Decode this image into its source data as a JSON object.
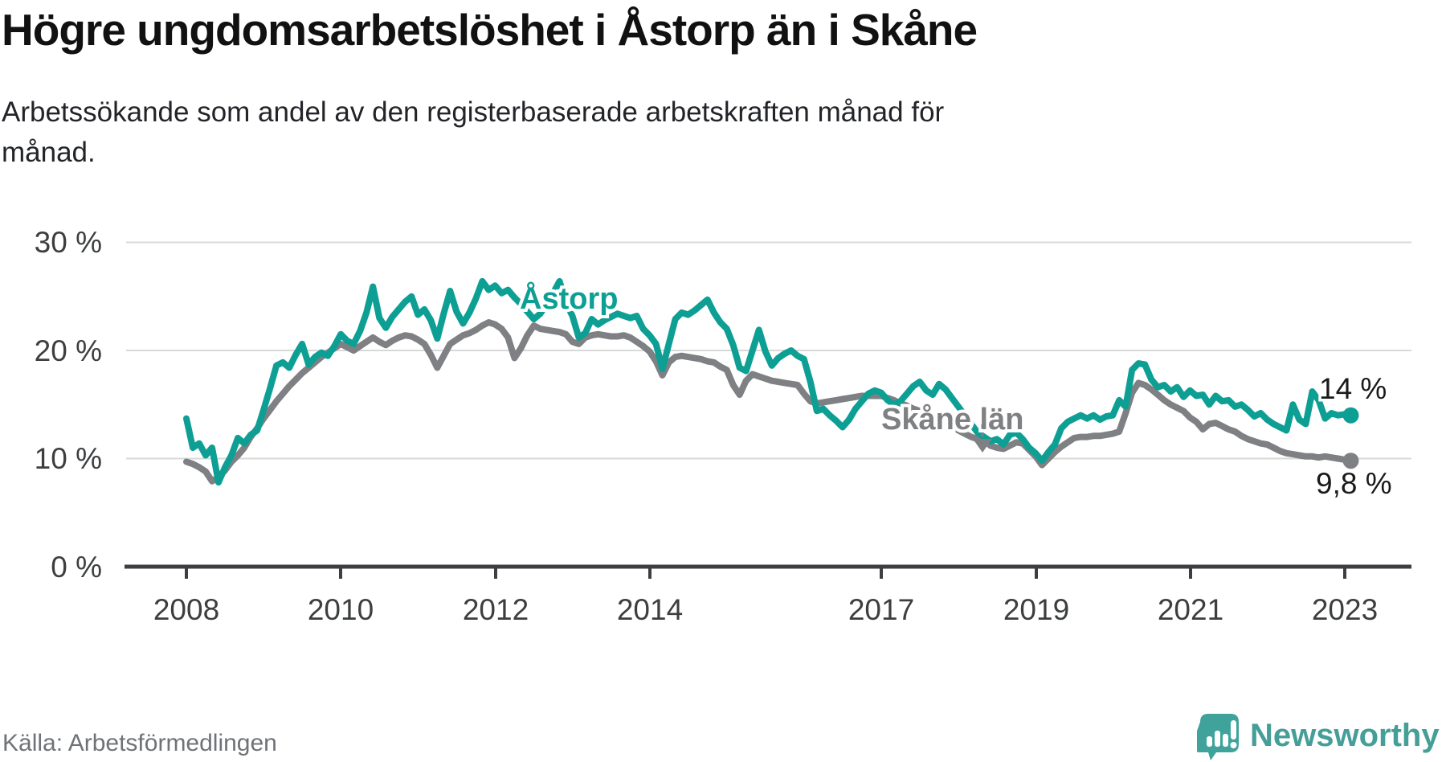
{
  "footer": {
    "source": "Källa: Arbetsförmedlingen",
    "brand": "Newsworthy"
  },
  "chart_data": {
    "type": "line",
    "title": "Högre ungdomsarbetslöshet i Åstorp än i Skåne",
    "subtitle": "Arbetssökande som andel av den registerbaserade arbetskraften månad för månad.",
    "subtitle_lines": [
      "Arbetssökande som andel av den registerbaserade arbetskraften månad för",
      "månad."
    ],
    "xlabel": "",
    "ylabel": "",
    "ylim": [
      0,
      30
    ],
    "grid": "horizontal",
    "legend": "inline-labels",
    "x_start": "2008-01",
    "x_end": "2023-02",
    "x_interval": "monthly",
    "x_tick_labels": [
      "2008",
      "2010",
      "2012",
      "2014",
      "2017",
      "2019",
      "2021",
      "2023"
    ],
    "x_tick_years": [
      2008,
      2010,
      2012,
      2014,
      2017,
      2019,
      2021,
      2023
    ],
    "y_ticks": [
      {
        "label": "30 %",
        "value": 30
      },
      {
        "label": "20 %",
        "value": 20
      },
      {
        "label": "10 %",
        "value": 10
      },
      {
        "label": "0 %",
        "value": 0
      }
    ],
    "series": [
      {
        "name": "Åstorp",
        "color": "#0d9f94",
        "end_label": "14 %",
        "end_value": 14,
        "values": [
          13.7,
          11.0,
          11.4,
          10.3,
          11.0,
          7.8,
          9.2,
          10.3,
          11.9,
          11.4,
          12.2,
          12.6,
          14.5,
          16.5,
          18.6,
          18.9,
          18.4,
          19.6,
          20.6,
          18.7,
          19.4,
          19.8,
          19.5,
          20.4,
          21.5,
          20.9,
          20.6,
          21.8,
          23.5,
          25.9,
          23.0,
          22.1,
          23.1,
          23.8,
          24.5,
          25.0,
          23.3,
          23.8,
          22.8,
          21.1,
          23.4,
          25.5,
          23.6,
          22.5,
          23.5,
          24.8,
          26.4,
          25.6,
          26.0,
          25.3,
          25.6,
          24.9,
          24.3,
          23.6,
          22.9,
          23.4,
          24.3,
          25.3,
          26.4,
          24.4,
          23.2,
          21.2,
          21.6,
          22.9,
          22.4,
          22.8,
          23.1,
          23.4,
          23.2,
          23.0,
          23.2,
          22.0,
          21.4,
          20.6,
          18.3,
          20.6,
          22.9,
          23.5,
          23.3,
          23.7,
          24.2,
          24.7,
          23.5,
          22.6,
          22.0,
          20.5,
          18.4,
          18.1,
          20.0,
          21.9,
          19.9,
          18.6,
          19.3,
          19.7,
          20.0,
          19.5,
          19.2,
          17.1,
          14.4,
          14.6,
          14.0,
          13.5,
          12.9,
          13.6,
          14.6,
          15.3,
          16.0,
          16.3,
          16.1,
          15.4,
          15.0,
          15.3,
          16.0,
          16.7,
          17.1,
          16.3,
          15.9,
          16.9,
          16.4,
          15.6,
          14.8,
          14.0,
          13.2,
          12.4,
          12.0,
          11.6,
          11.8,
          11.3,
          12.2,
          12.4,
          11.8,
          11.0,
          10.5,
          9.8,
          10.6,
          11.3,
          12.8,
          13.4,
          13.7,
          14.0,
          13.7,
          14.0,
          13.6,
          13.9,
          14.0,
          15.4,
          14.8,
          18.2,
          18.8,
          18.7,
          17.3,
          16.6,
          16.8,
          16.2,
          16.6,
          15.7,
          16.3,
          15.8,
          15.9,
          15.0,
          15.8,
          15.3,
          15.4,
          14.8,
          15.0,
          14.5,
          13.9,
          14.2,
          13.6,
          13.2,
          12.9,
          12.6,
          15.0,
          13.6,
          13.2,
          16.2,
          15.4,
          13.7,
          14.2,
          14.0,
          14.1,
          14.0
        ]
      },
      {
        "name": "Skåne län",
        "color": "#7f8083",
        "end_label": "9,8 %",
        "end_value": 9.8,
        "values": [
          9.7,
          9.5,
          9.2,
          8.8,
          7.9,
          8.3,
          8.9,
          9.7,
          10.3,
          11.0,
          12.0,
          12.8,
          13.7,
          14.5,
          15.3,
          16.0,
          16.7,
          17.3,
          17.9,
          18.4,
          18.9,
          19.4,
          19.8,
          20.2,
          20.6,
          20.3,
          20.0,
          20.4,
          20.8,
          21.2,
          20.8,
          20.5,
          20.9,
          21.2,
          21.4,
          21.3,
          21.0,
          20.6,
          19.6,
          18.4,
          19.5,
          20.6,
          21.0,
          21.4,
          21.6,
          21.9,
          22.3,
          22.6,
          22.4,
          22.0,
          21.2,
          19.3,
          20.2,
          21.4,
          22.3,
          22.0,
          21.9,
          21.8,
          21.7,
          21.5,
          20.8,
          20.6,
          21.2,
          21.4,
          21.5,
          21.4,
          21.3,
          21.3,
          21.4,
          21.2,
          20.8,
          20.4,
          19.9,
          19.0,
          17.7,
          18.9,
          19.4,
          19.5,
          19.4,
          19.3,
          19.2,
          19.0,
          18.9,
          18.5,
          18.2,
          16.8,
          15.9,
          17.2,
          17.8,
          17.6,
          17.4,
          17.2,
          17.1,
          17.0,
          16.9,
          16.8,
          16.0,
          15.3,
          15.1,
          15.2,
          15.3,
          15.4,
          15.5,
          15.6,
          15.7,
          15.8,
          15.8,
          15.8,
          15.8,
          15.6,
          15.4,
          15.1,
          14.9,
          14.6,
          14.4,
          14.1,
          13.9,
          13.6,
          13.4,
          13.1,
          12.6,
          12.3,
          12.0,
          11.8,
          11.7,
          11.2,
          11.0,
          10.9,
          11.2,
          11.5,
          11.4,
          10.8,
          10.2,
          9.4,
          10.0,
          10.6,
          11.1,
          11.5,
          11.9,
          12.0,
          12.0,
          12.1,
          12.1,
          12.2,
          12.3,
          12.5,
          14.2,
          16.1,
          17.0,
          16.8,
          16.4,
          15.9,
          15.4,
          15.0,
          14.7,
          14.4,
          13.8,
          13.4,
          12.7,
          13.2,
          13.3,
          13.0,
          12.7,
          12.5,
          12.1,
          11.8,
          11.6,
          11.4,
          11.3,
          11.0,
          10.7,
          10.5,
          10.4,
          10.3,
          10.2,
          10.2,
          10.1,
          10.2,
          10.1,
          10.0,
          9.9,
          9.8
        ]
      }
    ]
  }
}
